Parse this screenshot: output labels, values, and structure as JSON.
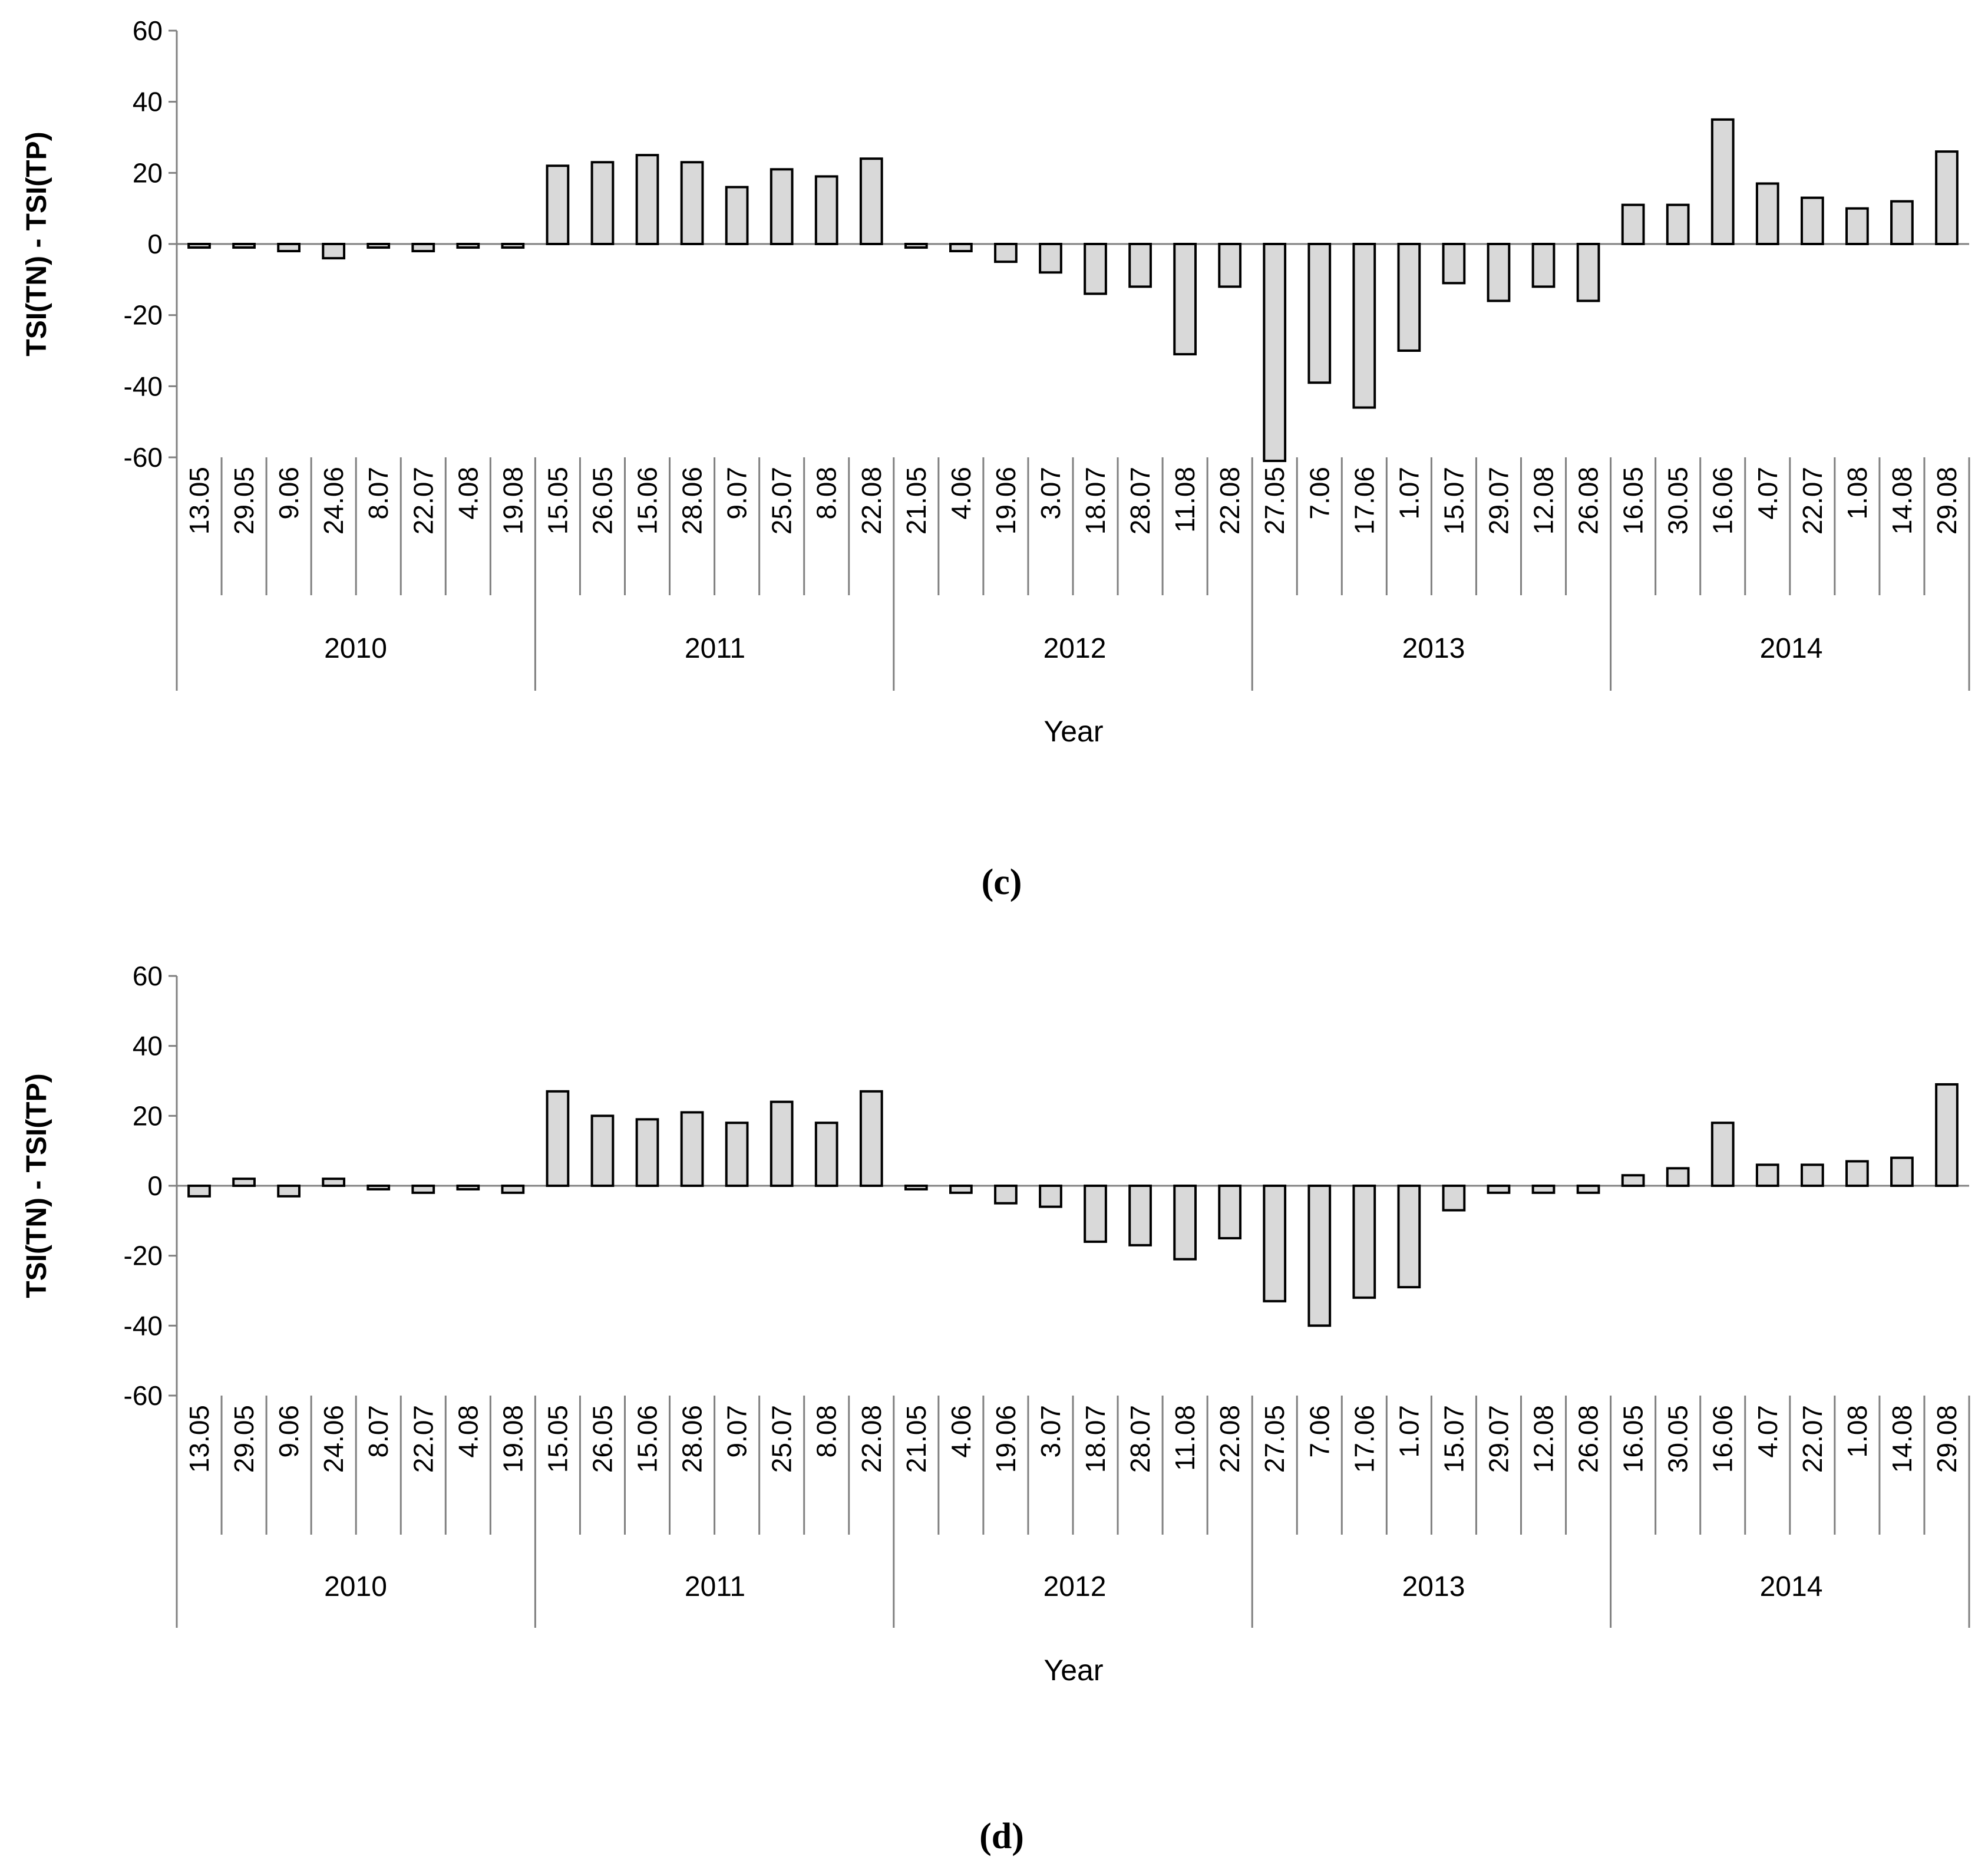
{
  "chart_data": [
    {
      "type": "bar",
      "panel_label": "(c)",
      "ylabel": "TSI(TN) - TSI(TP)",
      "xlabel": "Year",
      "ylim": [
        -60,
        60
      ],
      "yticks": [
        60,
        40,
        20,
        0,
        -20,
        -40,
        -60
      ],
      "grid": false,
      "legend": "none",
      "bar_color": "#d9d9d9",
      "groups": [
        {
          "label": "2010",
          "dates": [
            "13.05",
            "29.05",
            "9.06",
            "24.06",
            "8.07",
            "22.07",
            "4.08",
            "19.08"
          ],
          "values": [
            -1,
            -1,
            -2,
            -4,
            -1,
            -2,
            -1,
            -1
          ]
        },
        {
          "label": "2011",
          "dates": [
            "15.05",
            "26.05",
            "15.06",
            "28.06",
            "9.07",
            "25.07",
            "8.08",
            "22.08"
          ],
          "values": [
            22,
            23,
            25,
            23,
            16,
            21,
            19,
            24
          ]
        },
        {
          "label": "2012",
          "dates": [
            "21.05",
            "4.06",
            "19.06",
            "3.07",
            "18.07",
            "28.07",
            "11.08",
            "22.08"
          ],
          "values": [
            -1,
            -2,
            -5,
            -8,
            -14,
            -12,
            -31,
            -12
          ]
        },
        {
          "label": "2013",
          "dates": [
            "27.05",
            "7.06",
            "17.06",
            "1.07",
            "15.07",
            "29.07",
            "12.08",
            "26.08"
          ],
          "values": [
            -61,
            -39,
            -46,
            -30,
            -11,
            -16,
            -12,
            -16
          ]
        },
        {
          "label": "2014",
          "dates": [
            "16.05",
            "30.05",
            "16.06",
            "4.07",
            "22.07",
            "1.08",
            "14.08",
            "29.08"
          ],
          "values": [
            11,
            11,
            35,
            17,
            13,
            10,
            12,
            26
          ]
        }
      ]
    },
    {
      "type": "bar",
      "panel_label": "(d)",
      "ylabel": "TSI(TN) - TSI(TP)",
      "xlabel": "Year",
      "ylim": [
        -60,
        60
      ],
      "yticks": [
        60,
        40,
        20,
        0,
        -20,
        -40,
        -60
      ],
      "grid": false,
      "legend": "none",
      "bar_color": "#d9d9d9",
      "groups": [
        {
          "label": "2010",
          "dates": [
            "13.05",
            "29.05",
            "9.06",
            "24.06",
            "8.07",
            "22.07",
            "4.08",
            "19.08"
          ],
          "values": [
            -3,
            2,
            -3,
            2,
            -1,
            -2,
            -1,
            -2
          ]
        },
        {
          "label": "2011",
          "dates": [
            "15.05",
            "26.05",
            "15.06",
            "28.06",
            "9.07",
            "25.07",
            "8.08",
            "22.08"
          ],
          "values": [
            27,
            20,
            19,
            21,
            18,
            24,
            18,
            27
          ]
        },
        {
          "label": "2012",
          "dates": [
            "21.05",
            "4.06",
            "19.06",
            "3.07",
            "18.07",
            "28.07",
            "11.08",
            "22.08"
          ],
          "values": [
            -1,
            -2,
            -5,
            -6,
            -16,
            -17,
            -21,
            -15
          ]
        },
        {
          "label": "2013",
          "dates": [
            "27.05",
            "7.06",
            "17.06",
            "1.07",
            "15.07",
            "29.07",
            "12.08",
            "26.08"
          ],
          "values": [
            -33,
            -40,
            -32,
            -29,
            -7,
            -2,
            -2,
            -2
          ]
        },
        {
          "label": "2014",
          "dates": [
            "16.05",
            "30.05",
            "16.06",
            "4.07",
            "22.07",
            "1.08",
            "14.08",
            "29.08"
          ],
          "values": [
            3,
            5,
            18,
            6,
            6,
            7,
            8,
            29
          ]
        }
      ]
    }
  ]
}
